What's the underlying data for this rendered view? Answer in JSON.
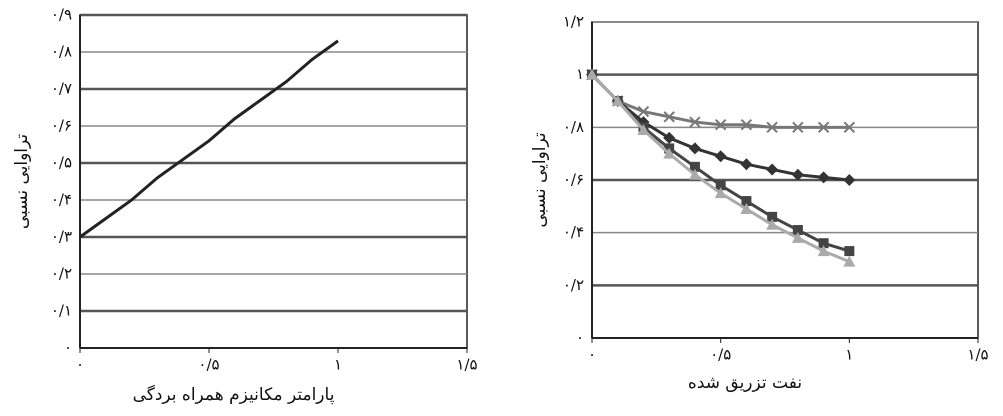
{
  "chart_data": [
    {
      "type": "line",
      "x_label": "پارامتر مکانیزم همراه بردگی",
      "y_label": "تراوایی نسبی",
      "x": [
        0,
        0.1,
        0.2,
        0.3,
        0.4,
        0.5,
        0.6,
        0.7,
        0.8,
        0.9,
        1
      ],
      "series": [
        {
          "color": "#222222",
          "marker": "none",
          "values": [
            0.3,
            0.35,
            0.4,
            0.46,
            0.51,
            0.56,
            0.62,
            0.67,
            0.72,
            0.78,
            0.83
          ]
        }
      ],
      "xlim": [
        0,
        1.5
      ],
      "xticks": [
        {
          "value": 0,
          "label": "۰"
        },
        {
          "value": 0.5,
          "label": "۰/۵"
        },
        {
          "value": 1,
          "label": "۱"
        },
        {
          "value": 1.5,
          "label": "۱/۵"
        }
      ],
      "ylim": [
        0,
        0.9
      ],
      "yticks": [
        {
          "value": 0,
          "label": "۰"
        },
        {
          "value": 0.1,
          "label": "۰/۱"
        },
        {
          "value": 0.2,
          "label": "۰/۲"
        },
        {
          "value": 0.3,
          "label": "۰/۳"
        },
        {
          "value": 0.4,
          "label": "۰/۴"
        },
        {
          "value": 0.5,
          "label": "۰/۵"
        },
        {
          "value": 0.6,
          "label": "۰/۶"
        },
        {
          "value": 0.7,
          "label": "۰/۷"
        },
        {
          "value": 0.8,
          "label": "۰/۸"
        },
        {
          "value": 0.9,
          "label": "۰/۹"
        }
      ],
      "grid": true
    },
    {
      "type": "line",
      "x_label": "نفت تزریق شده",
      "y_label": "تراوایی نسبی",
      "x": [
        0,
        0.1,
        0.2,
        0.3,
        0.4,
        0.5,
        0.6,
        0.7,
        0.8,
        0.9,
        1
      ],
      "series": [
        {
          "color": "#777777",
          "marker": "cross",
          "values": [
            1,
            0.9,
            0.86,
            0.84,
            0.82,
            0.81,
            0.81,
            0.8,
            0.8,
            0.8,
            0.8
          ]
        },
        {
          "color": "#333333",
          "marker": "diamond",
          "values": [
            1,
            0.9,
            0.82,
            0.76,
            0.72,
            0.69,
            0.66,
            0.64,
            0.62,
            0.61,
            0.6
          ]
        },
        {
          "color": "#444444",
          "marker": "square",
          "values": [
            1,
            0.9,
            0.8,
            0.72,
            0.65,
            0.58,
            0.52,
            0.46,
            0.41,
            0.36,
            0.33
          ]
        },
        {
          "color": "#aaaaaa",
          "marker": "triangle",
          "values": [
            1,
            0.9,
            0.79,
            0.7,
            0.62,
            0.55,
            0.49,
            0.43,
            0.38,
            0.33,
            0.29
          ]
        }
      ],
      "xlim": [
        0,
        1.5
      ],
      "xticks": [
        {
          "value": 0,
          "label": "۰"
        },
        {
          "value": 0.5,
          "label": "۰/۵"
        },
        {
          "value": 1,
          "label": "۱"
        },
        {
          "value": 1.5,
          "label": "۱/۵"
        }
      ],
      "ylim": [
        0,
        1.2
      ],
      "yticks": [
        {
          "value": 0,
          "label": "۰"
        },
        {
          "value": 0.2,
          "label": "۰/۲"
        },
        {
          "value": 0.4,
          "label": "۰/۴"
        },
        {
          "value": 0.6,
          "label": "۰/۶"
        },
        {
          "value": 0.8,
          "label": "۰/۸"
        },
        {
          "value": 1,
          "label": "۱"
        },
        {
          "value": 1.2,
          "label": "۱/۲"
        }
      ],
      "grid": true
    }
  ]
}
